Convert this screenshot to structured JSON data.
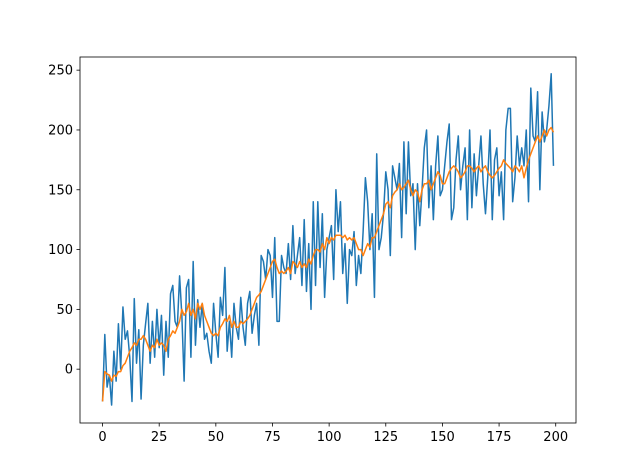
{
  "chart_data": {
    "type": "line",
    "x": [
      0,
      1,
      2,
      3,
      4,
      5,
      6,
      7,
      8,
      9,
      10,
      11,
      12,
      13,
      14,
      15,
      16,
      17,
      18,
      19,
      20,
      21,
      22,
      23,
      24,
      25,
      26,
      27,
      28,
      29,
      30,
      31,
      32,
      33,
      34,
      35,
      36,
      37,
      38,
      39,
      40,
      41,
      42,
      43,
      44,
      45,
      46,
      47,
      48,
      49,
      50,
      51,
      52,
      53,
      54,
      55,
      56,
      57,
      58,
      59,
      60,
      61,
      62,
      63,
      64,
      65,
      66,
      67,
      68,
      69,
      70,
      71,
      72,
      73,
      74,
      75,
      76,
      77,
      78,
      79,
      80,
      81,
      82,
      83,
      84,
      85,
      86,
      87,
      88,
      89,
      90,
      91,
      92,
      93,
      94,
      95,
      96,
      97,
      98,
      99,
      100,
      101,
      102,
      103,
      104,
      105,
      106,
      107,
      108,
      109,
      110,
      111,
      112,
      113,
      114,
      115,
      116,
      117,
      118,
      119,
      120,
      121,
      122,
      123,
      124,
      125,
      126,
      127,
      128,
      129,
      130,
      131,
      132,
      133,
      134,
      135,
      136,
      137,
      138,
      139,
      140,
      141,
      142,
      143,
      144,
      145,
      146,
      147,
      148,
      149,
      150,
      151,
      152,
      153,
      154,
      155,
      156,
      157,
      158,
      159,
      160,
      161,
      162,
      163,
      164,
      165,
      166,
      167,
      168,
      169,
      170,
      171,
      172,
      173,
      174,
      175,
      176,
      177,
      178,
      179,
      180,
      181,
      182,
      183,
      184,
      185,
      186,
      187,
      188,
      189,
      190,
      191,
      192,
      193,
      194,
      195,
      196,
      197,
      198,
      199
    ],
    "series": [
      {
        "color": "#1f77b4",
        "values": [
          -27,
          29,
          -15,
          -5,
          -30,
          15,
          -10,
          38,
          0,
          52,
          25,
          32,
          10,
          -27,
          59,
          5,
          33,
          -25,
          20,
          38,
          55,
          5,
          40,
          10,
          50,
          18,
          45,
          -5,
          40,
          10,
          63,
          70,
          40,
          35,
          78,
          45,
          -10,
          68,
          75,
          10,
          90,
          20,
          58,
          35,
          55,
          25,
          30,
          15,
          5,
          55,
          30,
          10,
          60,
          45,
          85,
          15,
          40,
          10,
          55,
          35,
          25,
          60,
          35,
          20,
          55,
          65,
          30,
          45,
          55,
          20,
          95,
          90,
          75,
          100,
          95,
          60,
          110,
          40,
          40,
          95,
          85,
          80,
          105,
          75,
          120,
          80,
          95,
          110,
          70,
          125,
          65,
          105,
          50,
          140,
          70,
          140,
          85,
          130,
          60,
          100,
          110,
          120,
          75,
          150,
          115,
          140,
          80,
          105,
          55,
          100,
          95,
          115,
          70,
          95,
          80,
          115,
          160,
          140,
          100,
          130,
          60,
          180,
          100,
          110,
          130,
          165,
          150,
          95,
          170,
          160,
          150,
          172,
          110,
          190,
          130,
          190,
          145,
          155,
          100,
          155,
          120,
          150,
          185,
          200,
          135,
          170,
          125,
          170,
          195,
          145,
          150,
          170,
          190,
          205,
          125,
          135,
          175,
          195,
          150,
          170,
          185,
          125,
          200,
          135,
          180,
          145,
          170,
          195,
          155,
          130,
          160,
          200,
          125,
          175,
          185,
          145,
          165,
          125,
          200,
          218,
          218,
          140,
          160,
          195,
          170,
          185,
          170,
          200,
          140,
          235,
          195,
          190,
          232,
          150,
          215,
          190,
          200,
          220,
          247,
          170
        ]
      },
      {
        "color": "#ff7f0e",
        "values": [
          -27,
          -2,
          -4,
          -5,
          -10,
          -5,
          -6,
          -2,
          -2,
          3,
          5,
          10,
          15,
          18,
          22,
          20,
          25,
          25,
          28,
          25,
          20,
          15,
          20,
          18,
          25,
          20,
          22,
          20,
          15,
          25,
          28,
          32,
          30,
          35,
          40,
          50,
          45,
          48,
          55,
          45,
          50,
          42,
          55,
          50,
          55,
          45,
          40,
          35,
          30,
          28,
          30,
          28,
          35,
          38,
          42,
          40,
          45,
          35,
          40,
          35,
          35,
          40,
          38,
          40,
          42,
          45,
          50,
          55,
          60,
          62,
          65,
          70,
          75,
          80,
          85,
          90,
          92,
          85,
          80,
          82,
          80,
          82,
          85,
          80,
          90,
          88,
          85,
          90,
          85,
          88,
          85,
          92,
          88,
          95,
          100,
          100,
          98,
          105,
          100,
          110,
          105,
          110,
          108,
          112,
          112,
          112,
          110,
          112,
          108,
          110,
          108,
          110,
          105,
          100,
          100,
          95,
          100,
          105,
          102,
          110,
          110,
          115,
          120,
          125,
          130,
          138,
          140,
          135,
          145,
          148,
          150,
          155,
          150,
          152,
          155,
          158,
          150,
          145,
          150,
          148,
          140,
          150,
          155,
          155,
          158,
          150,
          155,
          160,
          165,
          162,
          155,
          155,
          160,
          165,
          168,
          170,
          168,
          165,
          160,
          162,
          165,
          170,
          170,
          168,
          165,
          168,
          170,
          165,
          168,
          170,
          165,
          162,
          160,
          162,
          165,
          168,
          170,
          175,
          172,
          170,
          168,
          165,
          170,
          168,
          165,
          170,
          160,
          168,
          175,
          180,
          185,
          190,
          195,
          190,
          195,
          200,
          195,
          200,
          202,
          198
        ]
      }
    ],
    "xlim": [
      -9.95,
      208.95
    ],
    "xticks": [
      0,
      25,
      50,
      75,
      100,
      125,
      150,
      175,
      200
    ],
    "ylim": [
      -45,
      261
    ],
    "yticks": [
      0,
      50,
      100,
      150,
      200,
      250
    ]
  }
}
